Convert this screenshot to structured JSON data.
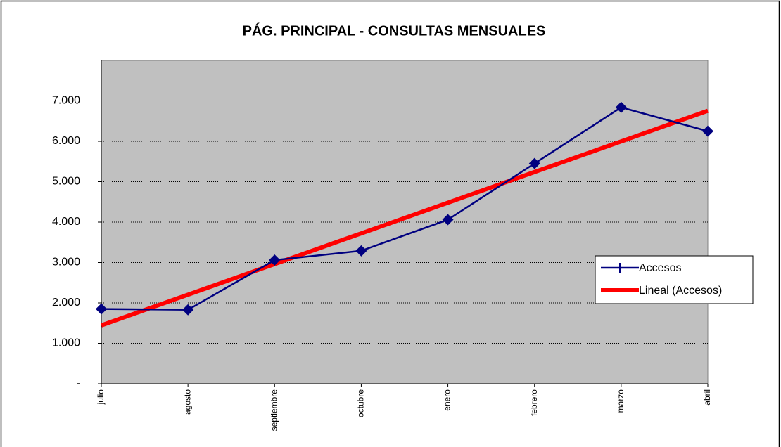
{
  "chart_data": {
    "type": "line",
    "title": "PÁG. PRINCIPAL - CONSULTAS MENSUALES",
    "categories": [
      "julio",
      "agosto",
      "septiembre",
      "octubre",
      "enero",
      "febrero",
      "marzo",
      "abril"
    ],
    "series": [
      {
        "name": "Accesos",
        "color": "#000080",
        "values": [
          1850,
          1830,
          3060,
          3290,
          4060,
          5450,
          6840,
          6250
        ]
      },
      {
        "name": "Lineal (Accesos)",
        "color": "#ff0000",
        "values": [
          1445,
          2204,
          2962,
          3721,
          4480,
          5239,
          5997,
          6756
        ]
      }
    ],
    "ylim": [
      0,
      8000
    ],
    "yticks": [
      {
        "value": 0,
        "label": "-"
      },
      {
        "value": 1000,
        "label": "1.000"
      },
      {
        "value": 2000,
        "label": "2.000"
      },
      {
        "value": 3000,
        "label": "3.000"
      },
      {
        "value": 4000,
        "label": "4.000"
      },
      {
        "value": 5000,
        "label": "5.000"
      },
      {
        "value": 6000,
        "label": "6.000"
      },
      {
        "value": 7000,
        "label": "7.000"
      }
    ],
    "grid": true,
    "plot_background": "#c0c0c0"
  }
}
